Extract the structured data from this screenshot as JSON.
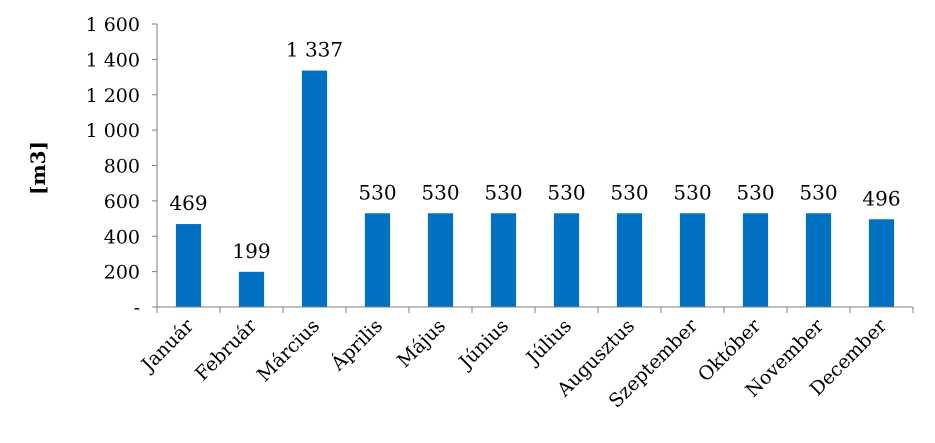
{
  "chart_data": {
    "type": "bar",
    "title": "",
    "xlabel": "",
    "ylabel": "[m3]",
    "categories": [
      "Január",
      "Február",
      "Március",
      "Április",
      "Május",
      "Június",
      "Július",
      "Augusztus",
      "Szeptember",
      "Október",
      "November",
      "December"
    ],
    "values": [
      469,
      199,
      1337,
      530,
      530,
      530,
      530,
      530,
      530,
      530,
      530,
      496
    ],
    "data_labels": [
      "469",
      "199",
      "1 337",
      "530",
      "530",
      "530",
      "530",
      "530",
      "530",
      "530",
      "530",
      "496"
    ],
    "ylim": [
      0,
      1600
    ],
    "yticks": [
      0,
      200,
      400,
      600,
      800,
      1000,
      1200,
      1400,
      1600
    ],
    "ytick_labels": [
      "-",
      "200",
      "400",
      "600",
      "800",
      "1 000",
      "1 200",
      "1 400",
      "1 600"
    ],
    "bar_color": "#0070C0",
    "axis_color": "#7f7f7f",
    "grid": false,
    "legend": "none"
  }
}
